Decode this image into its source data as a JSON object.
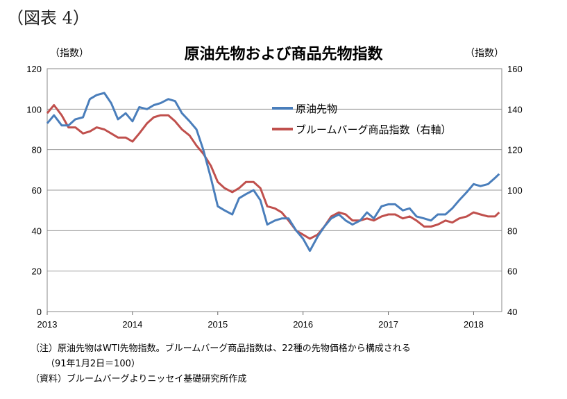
{
  "figure_label": "（図表 4）",
  "chart_data": {
    "type": "line",
    "title": "原油先物および商品先物指数",
    "ylabel_left": "（指数）",
    "ylabel_right": "（指数）",
    "x_ticks": [
      "2013",
      "2014",
      "2015",
      "2016",
      "2017",
      "2018"
    ],
    "xlim": [
      2013.0,
      2018.33
    ],
    "ylim_left": [
      0,
      120
    ],
    "yticks_left": [
      0,
      20,
      40,
      60,
      80,
      100,
      120
    ],
    "ylim_right": [
      40,
      160
    ],
    "yticks_right": [
      40,
      60,
      80,
      100,
      120,
      140,
      160
    ],
    "grid": true,
    "legend_position": "upper-right-inside",
    "series": [
      {
        "name": "原油先物",
        "axis": "left",
        "color": "#4a7ebb",
        "points": [
          [
            2013.0,
            93
          ],
          [
            2013.08,
            97
          ],
          [
            2013.17,
            92
          ],
          [
            2013.25,
            92
          ],
          [
            2013.33,
            95
          ],
          [
            2013.42,
            96
          ],
          [
            2013.5,
            105
          ],
          [
            2013.58,
            107
          ],
          [
            2013.67,
            108
          ],
          [
            2013.75,
            103
          ],
          [
            2013.83,
            95
          ],
          [
            2013.92,
            98
          ],
          [
            2014.0,
            94
          ],
          [
            2014.08,
            101
          ],
          [
            2014.17,
            100
          ],
          [
            2014.25,
            102
          ],
          [
            2014.33,
            103
          ],
          [
            2014.42,
            105
          ],
          [
            2014.5,
            104
          ],
          [
            2014.58,
            98
          ],
          [
            2014.67,
            94
          ],
          [
            2014.75,
            90
          ],
          [
            2014.83,
            80
          ],
          [
            2014.92,
            66
          ],
          [
            2015.0,
            52
          ],
          [
            2015.08,
            50
          ],
          [
            2015.17,
            48
          ],
          [
            2015.25,
            56
          ],
          [
            2015.33,
            58
          ],
          [
            2015.42,
            60
          ],
          [
            2015.5,
            55
          ],
          [
            2015.58,
            43
          ],
          [
            2015.67,
            45
          ],
          [
            2015.75,
            46
          ],
          [
            2015.83,
            46
          ],
          [
            2015.92,
            40
          ],
          [
            2016.0,
            36
          ],
          [
            2016.08,
            30
          ],
          [
            2016.17,
            37
          ],
          [
            2016.25,
            42
          ],
          [
            2016.33,
            46
          ],
          [
            2016.42,
            48
          ],
          [
            2016.5,
            45
          ],
          [
            2016.58,
            43
          ],
          [
            2016.67,
            45
          ],
          [
            2016.75,
            49
          ],
          [
            2016.83,
            46
          ],
          [
            2016.92,
            52
          ],
          [
            2017.0,
            53
          ],
          [
            2017.08,
            53
          ],
          [
            2017.17,
            50
          ],
          [
            2017.25,
            51
          ],
          [
            2017.33,
            47
          ],
          [
            2017.42,
            46
          ],
          [
            2017.5,
            45
          ],
          [
            2017.58,
            48
          ],
          [
            2017.67,
            48
          ],
          [
            2017.75,
            51
          ],
          [
            2017.83,
            55
          ],
          [
            2017.92,
            59
          ],
          [
            2018.0,
            63
          ],
          [
            2018.08,
            62
          ],
          [
            2018.17,
            63
          ],
          [
            2018.25,
            66
          ],
          [
            2018.3,
            68
          ]
        ]
      },
      {
        "name": "ブルームバーグ商品指数（右軸）",
        "axis": "right",
        "color": "#c0504d",
        "points": [
          [
            2013.0,
            138
          ],
          [
            2013.08,
            142
          ],
          [
            2013.17,
            137
          ],
          [
            2013.25,
            131
          ],
          [
            2013.33,
            131
          ],
          [
            2013.42,
            128
          ],
          [
            2013.5,
            129
          ],
          [
            2013.58,
            131
          ],
          [
            2013.67,
            130
          ],
          [
            2013.75,
            128
          ],
          [
            2013.83,
            126
          ],
          [
            2013.92,
            126
          ],
          [
            2014.0,
            124
          ],
          [
            2014.08,
            128
          ],
          [
            2014.17,
            133
          ],
          [
            2014.25,
            136
          ],
          [
            2014.33,
            137
          ],
          [
            2014.42,
            137
          ],
          [
            2014.5,
            134
          ],
          [
            2014.58,
            130
          ],
          [
            2014.67,
            127
          ],
          [
            2014.75,
            122
          ],
          [
            2014.83,
            118
          ],
          [
            2014.92,
            112
          ],
          [
            2015.0,
            104
          ],
          [
            2015.08,
            101
          ],
          [
            2015.17,
            99
          ],
          [
            2015.25,
            101
          ],
          [
            2015.33,
            104
          ],
          [
            2015.42,
            104
          ],
          [
            2015.5,
            101
          ],
          [
            2015.58,
            92
          ],
          [
            2015.67,
            91
          ],
          [
            2015.75,
            89
          ],
          [
            2015.83,
            85
          ],
          [
            2015.92,
            80
          ],
          [
            2016.0,
            78
          ],
          [
            2016.08,
            76
          ],
          [
            2016.17,
            78
          ],
          [
            2016.25,
            82
          ],
          [
            2016.33,
            87
          ],
          [
            2016.42,
            89
          ],
          [
            2016.5,
            88
          ],
          [
            2016.58,
            85
          ],
          [
            2016.67,
            85
          ],
          [
            2016.75,
            86
          ],
          [
            2016.83,
            85
          ],
          [
            2016.92,
            87
          ],
          [
            2017.0,
            88
          ],
          [
            2017.08,
            88
          ],
          [
            2017.17,
            86
          ],
          [
            2017.25,
            87
          ],
          [
            2017.33,
            85
          ],
          [
            2017.42,
            82
          ],
          [
            2017.5,
            82
          ],
          [
            2017.58,
            83
          ],
          [
            2017.67,
            85
          ],
          [
            2017.75,
            84
          ],
          [
            2017.83,
            86
          ],
          [
            2017.92,
            87
          ],
          [
            2018.0,
            89
          ],
          [
            2018.08,
            88
          ],
          [
            2018.17,
            87
          ],
          [
            2018.25,
            87
          ],
          [
            2018.3,
            89
          ]
        ]
      }
    ]
  },
  "notes": [
    "（注）原油先物はWTI先物指数。ブルームバーグ商品指数は、22種の先物価格から構成される",
    "（91年1月2日＝100）",
    "（資料）ブルームバーグよりニッセイ基礎研究所作成"
  ]
}
